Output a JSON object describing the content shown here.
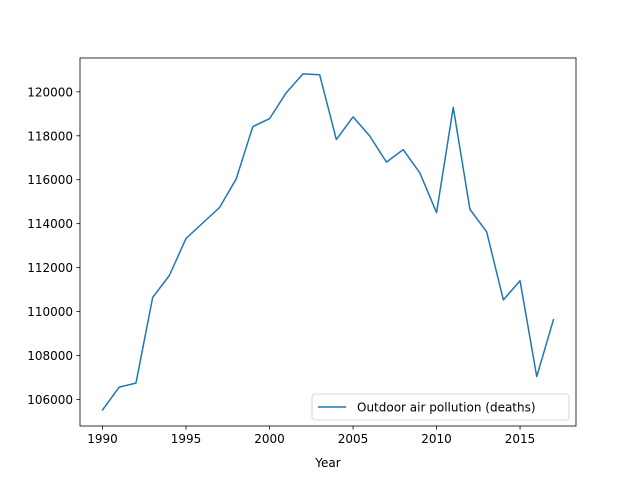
{
  "chart_data": {
    "type": "line",
    "title": "",
    "xlabel": "Year",
    "ylabel": "",
    "xlim": [
      1988.65,
      2018.35
    ],
    "ylim": [
      104790,
      121540
    ],
    "xticks": [
      1990,
      1995,
      2000,
      2005,
      2010,
      2015
    ],
    "yticks": [
      106000,
      108000,
      110000,
      112000,
      114000,
      116000,
      118000,
      120000
    ],
    "grid": false,
    "legend_position": "lower-right",
    "series": [
      {
        "name": "Outdoor air pollution (deaths)",
        "color": "#1f77b4",
        "x": [
          1990,
          1991,
          1992,
          1993,
          1994,
          1995,
          1996,
          1997,
          1998,
          1999,
          2000,
          2001,
          2002,
          2003,
          2004,
          2005,
          2006,
          2007,
          2008,
          2009,
          2010,
          2011,
          2012,
          2013,
          2014,
          2015,
          2016,
          2017
        ],
        "y": [
          105520,
          106560,
          106740,
          110640,
          111640,
          113330,
          114030,
          114730,
          116030,
          118420,
          118780,
          119960,
          120820,
          120780,
          117830,
          118860,
          117990,
          116800,
          117370,
          116310,
          114500,
          119290,
          114650,
          113630,
          110530,
          111400,
          107040,
          109630
        ]
      }
    ]
  }
}
